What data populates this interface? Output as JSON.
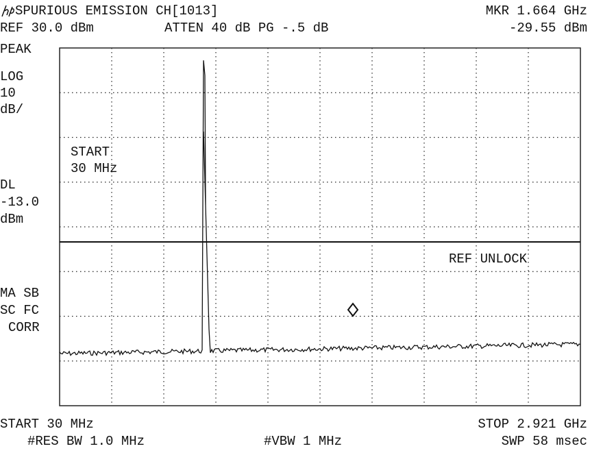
{
  "header": {
    "title": "SPURIOUS EMISSION CH[1013]",
    "marker": "MKR 1.664 GHz",
    "ref": "REF 30.0 dBm",
    "atten": "ATTEN 40 dB PG -.5 dB",
    "marker_level": "-29.55 dBm"
  },
  "left_panel": {
    "detector": "PEAK",
    "scale": [
      "LOG",
      "10",
      "dB/"
    ],
    "display_line": [
      "DL",
      "-13.0",
      "dBm"
    ],
    "flags": [
      "MA SB",
      "SC FC",
      "CORR"
    ]
  },
  "screen": {
    "start_note": [
      "START",
      "30 MHz"
    ],
    "status": "REF UNLOCK"
  },
  "footer": {
    "start": "START 30 MHz",
    "stop": "STOP 2.921 GHz",
    "rbw": "#RES BW 1.0 MHz",
    "vbw": "#VBW 1 MHz",
    "sweep": "SWP 58 msec"
  }
}
